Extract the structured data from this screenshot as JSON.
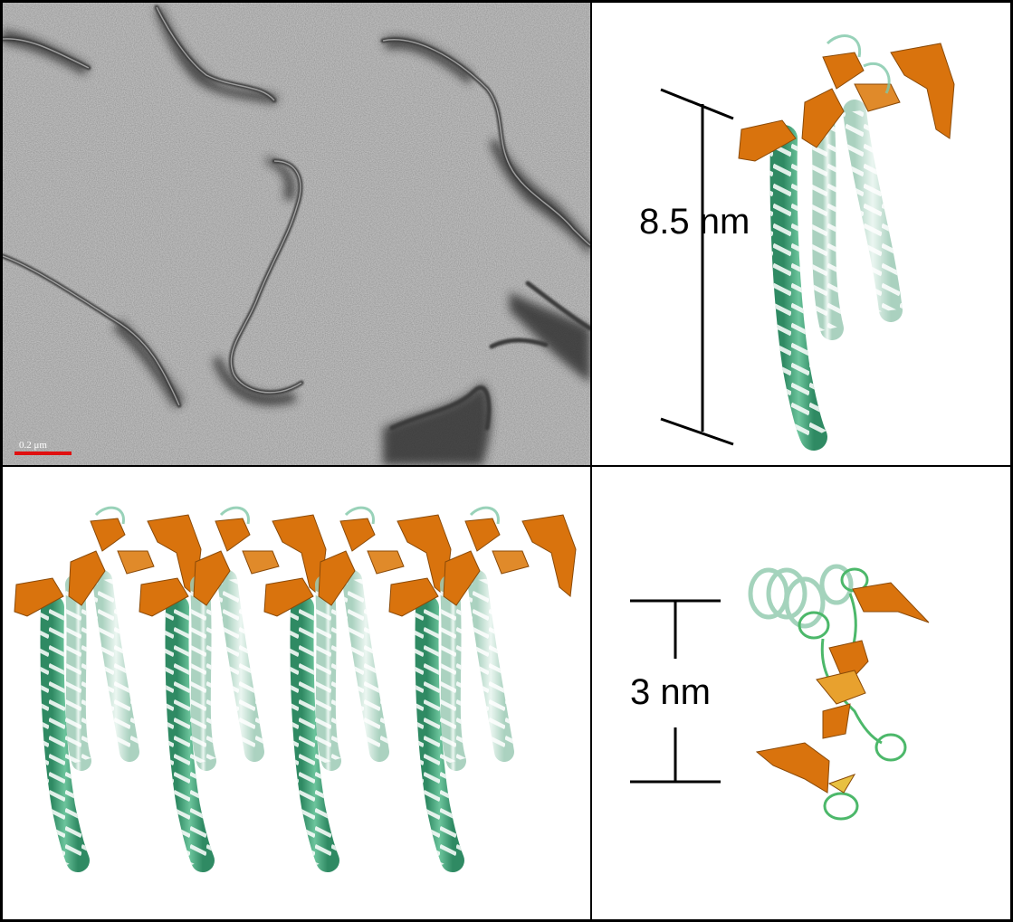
{
  "panels": {
    "micrograph": {
      "scale_bar_label": "0.2 μm",
      "scale_bar_color": "#e01010"
    },
    "single_trimer": {
      "height_label": "8.5 nm"
    },
    "array": {},
    "top_view": {
      "width_label": "3 nm"
    }
  },
  "colors": {
    "helix": "#3c9b73",
    "strand": "#d9730d",
    "border": "#000000"
  }
}
